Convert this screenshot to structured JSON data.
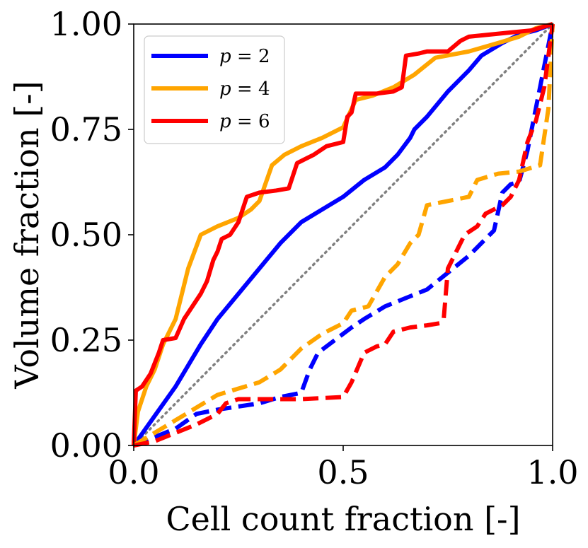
{
  "chart_data": {
    "type": "line",
    "title": "",
    "xlabel": "Cell count fraction [-]",
    "ylabel": "Volume fraction [-]",
    "xlim": [
      0,
      1
    ],
    "ylim": [
      0,
      1
    ],
    "x_ticks": [
      "0.0",
      "0.5",
      "1.0"
    ],
    "y_ticks": [
      "0.00",
      "0.25",
      "0.50",
      "0.75",
      "1.00"
    ],
    "x_tick_values": [
      0,
      0.5,
      1
    ],
    "y_tick_values": [
      0,
      0.25,
      0.5,
      0.75,
      1
    ],
    "grid": false,
    "legend_position": "top-left",
    "reference_line": {
      "style": "dotted",
      "color": "#808080",
      "points": [
        [
          0,
          0
        ],
        [
          1,
          1
        ]
      ]
    },
    "series": [
      {
        "name": "p = 2",
        "legend_var": "p",
        "legend_val": "2",
        "color": "#0000ff",
        "style": "solid",
        "points": [
          [
            0,
            0
          ],
          [
            0.05,
            0.07
          ],
          [
            0.1,
            0.14
          ],
          [
            0.16,
            0.24
          ],
          [
            0.2,
            0.3
          ],
          [
            0.25,
            0.36
          ],
          [
            0.3,
            0.42
          ],
          [
            0.35,
            0.48
          ],
          [
            0.4,
            0.53
          ],
          [
            0.45,
            0.56
          ],
          [
            0.5,
            0.59
          ],
          [
            0.55,
            0.63
          ],
          [
            0.6,
            0.66
          ],
          [
            0.63,
            0.69
          ],
          [
            0.66,
            0.73
          ],
          [
            0.67,
            0.75
          ],
          [
            0.7,
            0.78
          ],
          [
            0.75,
            0.84
          ],
          [
            0.8,
            0.89
          ],
          [
            0.83,
            0.925
          ],
          [
            0.88,
            0.955
          ],
          [
            0.92,
            0.975
          ],
          [
            0.96,
            0.985
          ],
          [
            1,
            1
          ]
        ]
      },
      {
        "name": "p = 4",
        "legend_var": "p",
        "legend_val": "4",
        "color": "#ffa500",
        "style": "solid",
        "points": [
          [
            0,
            0
          ],
          [
            0.01,
            0.08
          ],
          [
            0.03,
            0.14
          ],
          [
            0.05,
            0.18
          ],
          [
            0.07,
            0.24
          ],
          [
            0.1,
            0.3
          ],
          [
            0.13,
            0.42
          ],
          [
            0.16,
            0.5
          ],
          [
            0.2,
            0.52
          ],
          [
            0.25,
            0.54
          ],
          [
            0.28,
            0.56
          ],
          [
            0.3,
            0.58
          ],
          [
            0.33,
            0.665
          ],
          [
            0.36,
            0.69
          ],
          [
            0.4,
            0.71
          ],
          [
            0.45,
            0.73
          ],
          [
            0.5,
            0.755
          ],
          [
            0.53,
            0.82
          ],
          [
            0.57,
            0.83
          ],
          [
            0.62,
            0.85
          ],
          [
            0.67,
            0.88
          ],
          [
            0.72,
            0.92
          ],
          [
            0.8,
            0.935
          ],
          [
            0.87,
            0.955
          ],
          [
            0.92,
            0.97
          ],
          [
            0.96,
            0.99
          ],
          [
            1,
            1
          ]
        ]
      },
      {
        "name": "p = 6",
        "legend_var": "p",
        "legend_val": "6",
        "color": "#ff0000",
        "style": "solid",
        "points": [
          [
            0,
            0
          ],
          [
            0.005,
            0.13
          ],
          [
            0.02,
            0.14
          ],
          [
            0.04,
            0.17
          ],
          [
            0.06,
            0.22
          ],
          [
            0.07,
            0.25
          ],
          [
            0.1,
            0.255
          ],
          [
            0.12,
            0.3
          ],
          [
            0.14,
            0.33
          ],
          [
            0.16,
            0.36
          ],
          [
            0.175,
            0.39
          ],
          [
            0.19,
            0.44
          ],
          [
            0.2,
            0.46
          ],
          [
            0.21,
            0.49
          ],
          [
            0.23,
            0.5
          ],
          [
            0.25,
            0.53
          ],
          [
            0.26,
            0.56
          ],
          [
            0.27,
            0.59
          ],
          [
            0.3,
            0.6
          ],
          [
            0.34,
            0.605
          ],
          [
            0.37,
            0.61
          ],
          [
            0.38,
            0.64
          ],
          [
            0.39,
            0.67
          ],
          [
            0.41,
            0.68
          ],
          [
            0.43,
            0.69
          ],
          [
            0.46,
            0.71
          ],
          [
            0.5,
            0.72
          ],
          [
            0.51,
            0.78
          ],
          [
            0.52,
            0.79
          ],
          [
            0.53,
            0.835
          ],
          [
            0.58,
            0.835
          ],
          [
            0.62,
            0.84
          ],
          [
            0.64,
            0.85
          ],
          [
            0.65,
            0.925
          ],
          [
            0.68,
            0.93
          ],
          [
            0.7,
            0.935
          ],
          [
            0.75,
            0.935
          ],
          [
            0.78,
            0.96
          ],
          [
            0.8,
            0.97
          ],
          [
            0.85,
            0.975
          ],
          [
            0.9,
            0.98
          ],
          [
            0.95,
            0.985
          ],
          [
            1,
            1
          ]
        ]
      },
      {
        "name": "",
        "color": "#0000ff",
        "style": "dashed",
        "points": [
          [
            0,
            0
          ],
          [
            0.05,
            0.02
          ],
          [
            0.1,
            0.04
          ],
          [
            0.15,
            0.075
          ],
          [
            0.2,
            0.085
          ],
          [
            0.3,
            0.1
          ],
          [
            0.35,
            0.115
          ],
          [
            0.4,
            0.125
          ],
          [
            0.42,
            0.18
          ],
          [
            0.44,
            0.22
          ],
          [
            0.48,
            0.25
          ],
          [
            0.52,
            0.28
          ],
          [
            0.55,
            0.3
          ],
          [
            0.6,
            0.33
          ],
          [
            0.65,
            0.35
          ],
          [
            0.7,
            0.37
          ],
          [
            0.75,
            0.41
          ],
          [
            0.8,
            0.45
          ],
          [
            0.83,
            0.48
          ],
          [
            0.86,
            0.51
          ],
          [
            0.88,
            0.6
          ],
          [
            0.9,
            0.62
          ],
          [
            0.92,
            0.625
          ],
          [
            0.94,
            0.7
          ],
          [
            0.96,
            0.8
          ],
          [
            0.98,
            0.9
          ],
          [
            1,
            1
          ]
        ]
      },
      {
        "name": "",
        "color": "#ffa500",
        "style": "dashed",
        "points": [
          [
            0,
            0
          ],
          [
            0.05,
            0.03
          ],
          [
            0.1,
            0.06
          ],
          [
            0.15,
            0.09
          ],
          [
            0.2,
            0.12
          ],
          [
            0.25,
            0.135
          ],
          [
            0.3,
            0.15
          ],
          [
            0.35,
            0.18
          ],
          [
            0.4,
            0.23
          ],
          [
            0.45,
            0.265
          ],
          [
            0.5,
            0.29
          ],
          [
            0.52,
            0.32
          ],
          [
            0.56,
            0.33
          ],
          [
            0.6,
            0.4
          ],
          [
            0.63,
            0.43
          ],
          [
            0.66,
            0.48
          ],
          [
            0.68,
            0.5
          ],
          [
            0.7,
            0.57
          ],
          [
            0.75,
            0.58
          ],
          [
            0.8,
            0.59
          ],
          [
            0.82,
            0.63
          ],
          [
            0.87,
            0.645
          ],
          [
            0.92,
            0.65
          ],
          [
            0.97,
            0.665
          ],
          [
            0.99,
            0.8
          ],
          [
            1,
            1
          ]
        ]
      },
      {
        "name": "",
        "color": "#ff0000",
        "style": "dashed",
        "points": [
          [
            0,
            0
          ],
          [
            0.05,
            0.01
          ],
          [
            0.1,
            0.03
          ],
          [
            0.15,
            0.05
          ],
          [
            0.18,
            0.065
          ],
          [
            0.2,
            0.075
          ],
          [
            0.22,
            0.1
          ],
          [
            0.25,
            0.11
          ],
          [
            0.3,
            0.11
          ],
          [
            0.4,
            0.11
          ],
          [
            0.5,
            0.115
          ],
          [
            0.52,
            0.15
          ],
          [
            0.55,
            0.22
          ],
          [
            0.58,
            0.235
          ],
          [
            0.6,
            0.24
          ],
          [
            0.62,
            0.27
          ],
          [
            0.66,
            0.28
          ],
          [
            0.7,
            0.285
          ],
          [
            0.73,
            0.29
          ],
          [
            0.74,
            0.3
          ],
          [
            0.75,
            0.42
          ],
          [
            0.77,
            0.46
          ],
          [
            0.79,
            0.5
          ],
          [
            0.82,
            0.52
          ],
          [
            0.84,
            0.55
          ],
          [
            0.86,
            0.56
          ],
          [
            0.88,
            0.57
          ],
          [
            0.9,
            0.59
          ],
          [
            0.92,
            0.63
          ],
          [
            0.94,
            0.72
          ],
          [
            0.96,
            0.77
          ],
          [
            0.98,
            0.85
          ],
          [
            1,
            1
          ]
        ]
      }
    ]
  }
}
